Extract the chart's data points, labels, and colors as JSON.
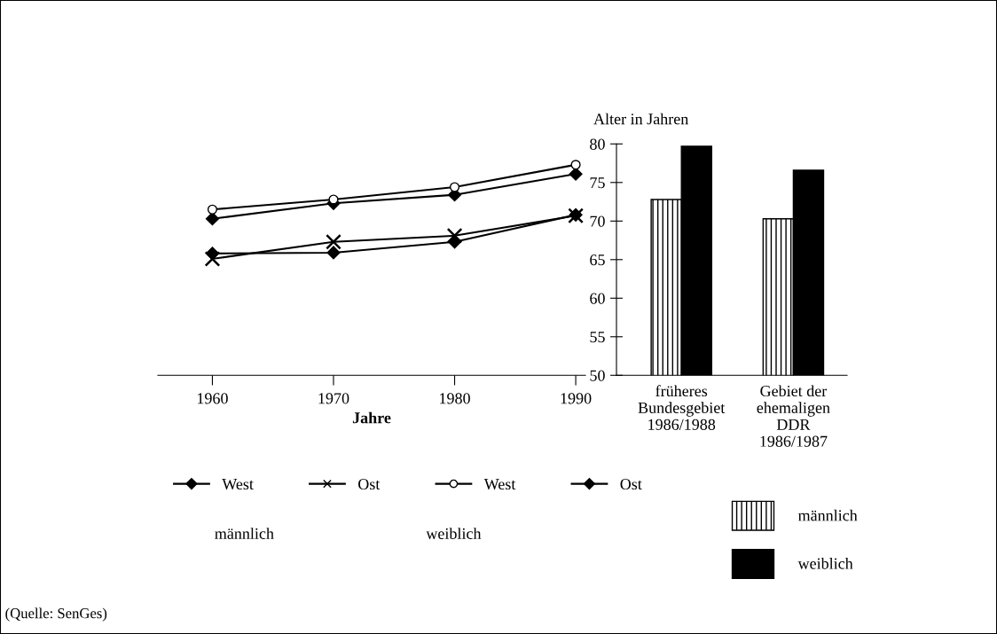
{
  "chart_data": [
    {
      "type": "line",
      "xlabel": "Jahre",
      "x": [
        1960,
        1970,
        1980,
        1990
      ],
      "xlim": [
        1955.5,
        1990.8
      ],
      "xticks": [
        1960,
        1970,
        1980,
        1990
      ],
      "ylim": [
        50,
        80
      ],
      "tick_labels": "x",
      "legend": "bottom",
      "line_style": "solid",
      "series": [
        {
          "name": "West",
          "color": "#000000",
          "marker": "diamond",
          "values": [
            70.3,
            72.3,
            73.4,
            76.1
          ]
        },
        {
          "name": "Ost",
          "color": "#000000",
          "marker": "cross",
          "values": [
            65.1,
            67.3,
            68.1,
            70.7
          ]
        },
        {
          "name": "West",
          "color": "#000000",
          "marker": "circle",
          "values": [
            71.5,
            72.8,
            74.4,
            77.3
          ]
        },
        {
          "name": "Ost",
          "color": "#000000",
          "marker": "diamond",
          "values": [
            65.8,
            65.9,
            67.3,
            70.8
          ]
        }
      ],
      "annotations": [
        "männlich",
        "weiblich",
        "(Quelle: SenGes)"
      ]
    },
    {
      "type": "bar",
      "ylabel": "Alter in Jahren",
      "categories": [
        "früheres\nBundesgebiet\n1986/1988",
        "Gebiet der\nehemaligen\nDDR\n1986/1987"
      ],
      "ylim": [
        50,
        80
      ],
      "yticks": [
        50,
        55,
        60,
        65,
        70,
        75,
        80
      ],
      "legend": "bottom",
      "series": [
        {
          "name": "männlich",
          "color": "#000000",
          "values": [
            72.8,
            70.3
          ]
        },
        {
          "name": "weiblich",
          "color": "#000000",
          "values": [
            79.7,
            76.6
          ]
        }
      ]
    }
  ]
}
